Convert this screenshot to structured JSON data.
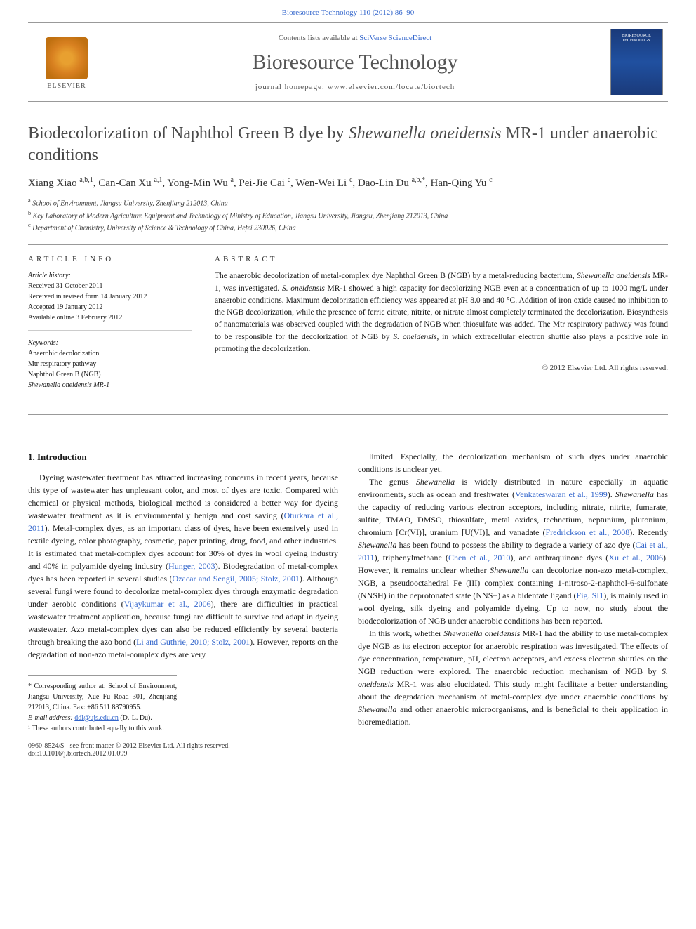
{
  "header_citation": "Bioresource Technology 110 (2012) 86–90",
  "masthead": {
    "publisher": "ELSEVIER",
    "contents_prefix": "Contents lists available at ",
    "contents_link": "SciVerse ScienceDirect",
    "journal_name": "Bioresource Technology",
    "homepage_prefix": "journal homepage: ",
    "homepage_url": "www.elsevier.com/locate/biortech"
  },
  "article": {
    "title_pre": "Biodecolorization of Naphthol Green B dye by ",
    "title_ital": "Shewanella oneidensis",
    "title_post": " MR-1 under anaerobic conditions",
    "authors_html": "Xiang Xiao <sup>a,b,1</sup>, Can-Can Xu <sup>a,1</sup>, Yong-Min Wu <sup>a</sup>, Pei-Jie Cai <sup>c</sup>, Wen-Wei Li <sup>c</sup>, Dao-Lin Du <sup>a,b,*</sup>, Han-Qing Yu <sup>c</sup>",
    "affiliations": [
      {
        "sup": "a",
        "text": "School of Environment, Jiangsu University, Zhenjiang 212013, China"
      },
      {
        "sup": "b",
        "text": "Key Laboratory of Modern Agriculture Equipment and Technology of Ministry of Education, Jiangsu University, Jiangsu, Zhenjiang 212013, China"
      },
      {
        "sup": "c",
        "text": "Department of Chemistry, University of Science & Technology of China, Hefei 230026, China"
      }
    ]
  },
  "info": {
    "label": "ARTICLE INFO",
    "history_label": "Article history:",
    "history": [
      "Received 31 October 2011",
      "Received in revised form 14 January 2012",
      "Accepted 19 January 2012",
      "Available online 3 February 2012"
    ],
    "keywords_label": "Keywords:",
    "keywords": [
      "Anaerobic decolorization",
      "Mtr respiratory pathway",
      "Naphthol Green B (NGB)",
      "Shewanella oneidensis MR-1"
    ]
  },
  "abstract": {
    "label": "ABSTRACT",
    "text_parts": [
      "The anaerobic decolorization of metal-complex dye Naphthol Green B (NGB) by a metal-reducing bacterium, ",
      "Shewanella oneidensis",
      " MR-1, was investigated. ",
      "S. oneidensis",
      " MR-1 showed a high capacity for decolorizing NGB even at a concentration of up to 1000 mg/L under anaerobic conditions. Maximum decolorization efficiency was appeared at pH 8.0 and 40 °C. Addition of iron oxide caused no inhibition to the NGB decolorization, while the presence of ferric citrate, nitrite, or nitrate almost completely terminated the decolorization. Biosynthesis of nanomaterials was observed coupled with the degradation of NGB when thiosulfate was added. The Mtr respiratory pathway was found to be responsible for the decolorization of NGB by ",
      "S. oneidensis",
      ", in which extracellular electron shuttle also plays a positive role in promoting the decolorization."
    ],
    "copyright": "© 2012 Elsevier Ltd. All rights reserved."
  },
  "body": {
    "heading": "1. Introduction",
    "left_paragraphs": [
      "Dyeing wastewater treatment has attracted increasing concerns in recent years, because this type of wastewater has unpleasant color, and most of dyes are toxic. Compared with chemical or physical methods, biological method is considered a better way for dyeing wastewater treatment as it is environmentally benign and cost saving (<span class=\"cite\">Oturkara et al., 2011</span>). Metal-complex dyes, as an important class of dyes, have been extensively used in textile dyeing, color photography, cosmetic, paper printing, drug, food, and other industries. It is estimated that metal-complex dyes account for 30% of dyes in wool dyeing industry and 40% in polyamide dyeing industry (<span class=\"cite\">Hunger, 2003</span>). Biodegradation of metal-complex dyes has been reported in several studies (<span class=\"cite\">Ozacar and Sengil, 2005; Stolz, 2001</span>). Although several fungi were found to decolorize metal-complex dyes through enzymatic degradation under aerobic conditions (<span class=\"cite\">Vijaykumar et al., 2006</span>), there are difficulties in practical wastewater treatment application, because fungi are difficult to survive and adapt in dyeing wastewater. Azo metal-complex dyes can also be reduced efficiently by several bacteria through breaking the azo bond (<span class=\"cite\">Li and Guthrie, 2010; Stolz, 2001</span>). However, reports on the degradation of non-azo metal-complex dyes are very"
    ],
    "right_paragraphs": [
      "limited. Especially, the decolorization mechanism of such dyes under anaerobic conditions is unclear yet.",
      "The genus <em>Shewanella</em> is widely distributed in nature especially in aquatic environments, such as ocean and freshwater (<span class=\"cite\">Venkateswaran et al., 1999</span>). <em>Shewanella</em> has the capacity of reducing various electron acceptors, including nitrate, nitrite, fumarate, sulfite, TMAO, DMSO, thiosulfate, metal oxides, technetium, neptunium, plutonium, chromium [Cr(VI)], uranium [U(VI)], and vanadate (<span class=\"cite\">Fredrickson et al., 2008</span>). Recently <em>Shewanella</em> has been found to possess the ability to degrade a variety of azo dye (<span class=\"cite\">Cai et al., 2011</span>), triphenylmethane (<span class=\"cite\">Chen et al., 2010</span>), and anthraquinone dyes (<span class=\"cite\">Xu et al., 2006</span>). However, it remains unclear whether <em>Shewanella</em> can decolorize non-azo metal-complex, NGB, a pseudooctahedral Fe (III) complex containing 1-nitroso-2-naphthol-6-sulfonate (NNSH) in the deprotonated state (NNS−) as a bidentate ligand (<span class=\"cite\">Fig. SI1</span>), is mainly used in wool dyeing, silk dyeing and polyamide dyeing. Up to now, no study about the biodecolorization of NGB under anaerobic conditions has been reported.",
      "In this work, whether <em>Shewanella oneidensis</em> MR-1 had the ability to use metal-complex dye NGB as its electron acceptor for anaerobic respiration was investigated. The effects of dye concentration, temperature, pH, electron acceptors, and excess electron shuttles on the NGB reduction were explored. The anaerobic reduction mechanism of NGB by <em>S. oneidensis</em> MR-1 was also elucidated. This study might facilitate a better understanding about the degradation mechanism of metal-complex dye under anaerobic conditions by <em>Shewanella</em> and other anaerobic microorganisms, and is beneficial to their application in bioremediation."
    ]
  },
  "footnotes": {
    "corr": "* Corresponding author at: School of Environment, Jiangsu University, Xue Fu Road 301, Zhenjiang 212013, China. Fax: +86 511 88790955.",
    "email_label": "E-mail address: ",
    "email": "ddl@ujs.edu.cn",
    "email_who": " (D.-L. Du).",
    "equal": "¹ These authors contributed equally to this work."
  },
  "footer": {
    "line1": "0960-8524/$ - see front matter © 2012 Elsevier Ltd. All rights reserved.",
    "line2": "doi:10.1016/j.biortech.2012.01.099"
  },
  "colors": {
    "link": "#3366cc",
    "text": "#1a1a1a",
    "heading_gray": "#4a4a4a",
    "rule": "#999999"
  }
}
